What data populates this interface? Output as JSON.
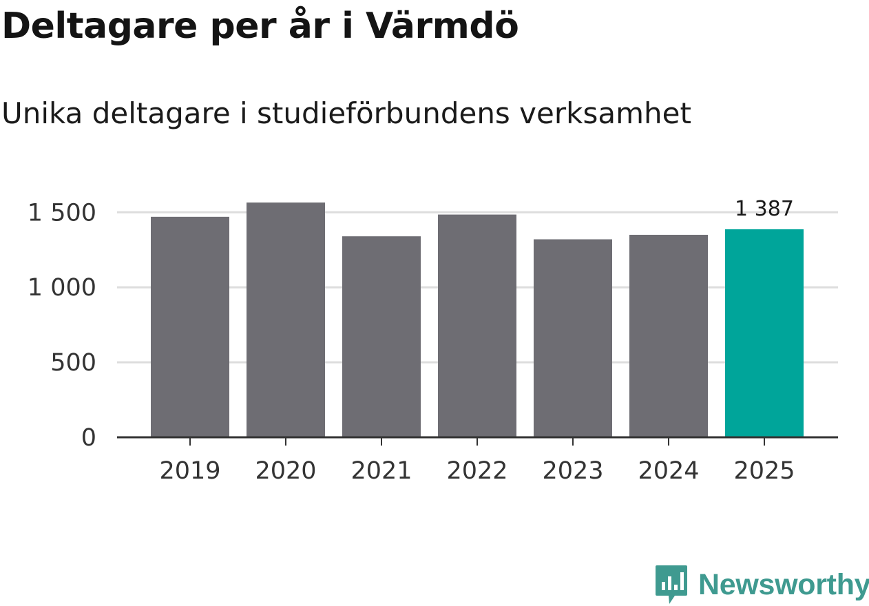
{
  "title": "Deltagare per år i Värmdö",
  "subtitle": "Unika deltagare i studieförbundens verksamhet",
  "brand": {
    "name": "Newsworthy",
    "color": "#3f9a90",
    "icon": "bar-chart-icon"
  },
  "colors": {
    "bar": "#6e6d73",
    "highlight": "#00a59a",
    "grid": "#dddddd",
    "axis": "#333333"
  },
  "chart_data": {
    "type": "bar",
    "title": "Deltagare per år i Värmdö",
    "subtitle": "Unika deltagare i studieförbundens verksamhet",
    "categories": [
      "2019",
      "2020",
      "2021",
      "2022",
      "2023",
      "2024",
      "2025"
    ],
    "values": [
      1470,
      1565,
      1340,
      1485,
      1320,
      1350,
      1387
    ],
    "highlight_index": 6,
    "data_labels": [
      {
        "index": 6,
        "text": "1 387"
      }
    ],
    "xlabel": "",
    "ylabel": "",
    "ylim": [
      0,
      1600
    ],
    "yticks": [
      0,
      500,
      1000,
      1500
    ],
    "ytick_labels": [
      "0",
      "500",
      "1 000",
      "1 500"
    ],
    "grid": true
  }
}
